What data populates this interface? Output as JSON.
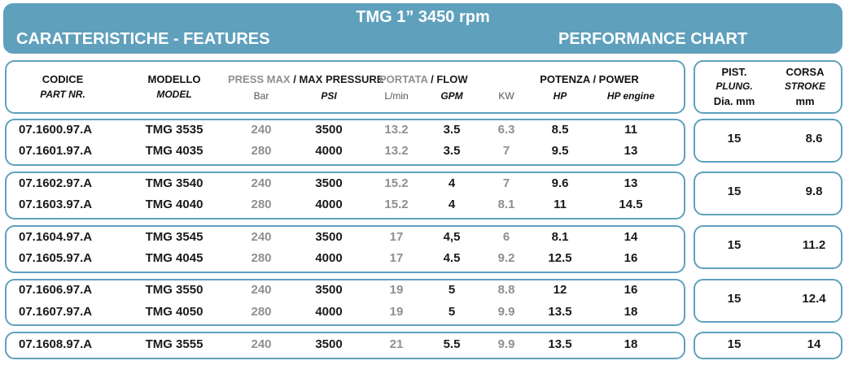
{
  "banner": {
    "title": "TMG 1” 3450 rpm",
    "left": "CARATTERISTICHE - FEATURES",
    "right": "PERFORMANCE CHART"
  },
  "headers": {
    "code_it": "CODICE",
    "code_en": "PART NR.",
    "model_it": "MODELLO",
    "model_en": "MODEL",
    "press_it": "PRESS MAX",
    "sep": "/",
    "press_en": "MAX PRESSURE",
    "unit_bar": "Bar",
    "unit_psi": "PSI",
    "flow_it": "PORTATA",
    "flow_en": "FLOW",
    "unit_lmin": "L/min",
    "unit_gpm": "GPM",
    "power_it_en": "POTENZA / POWER",
    "unit_kw": "KW",
    "unit_hp": "HP",
    "unit_hp_engine": "HP engine",
    "plunger_it": "PIST.",
    "plunger_en": "PLUNG.",
    "plunger_unit": "Dia. mm",
    "stroke_it": "CORSA",
    "stroke_en": "STROKE",
    "stroke_unit": "mm"
  },
  "groups": [
    {
      "plunger": "15",
      "stroke": "8.6",
      "rows": [
        {
          "code": "07.1600.97.A",
          "model": "TMG 3535",
          "bar": "240",
          "psi": "3500",
          "lmin": "13.2",
          "gpm": "3.5",
          "kw": "6.3",
          "hp": "8.5",
          "hp_engine": "11"
        },
        {
          "code": "07.1601.97.A",
          "model": "TMG 4035",
          "bar": "280",
          "psi": "4000",
          "lmin": "13.2",
          "gpm": "3.5",
          "kw": "7",
          "hp": "9.5",
          "hp_engine": "13"
        }
      ]
    },
    {
      "plunger": "15",
      "stroke": "9.8",
      "rows": [
        {
          "code": "07.1602.97.A",
          "model": "TMG 3540",
          "bar": "240",
          "psi": "3500",
          "lmin": "15.2",
          "gpm": "4",
          "kw": "7",
          "hp": "9.6",
          "hp_engine": "13"
        },
        {
          "code": "07.1603.97.A",
          "model": "TMG 4040",
          "bar": "280",
          "psi": "4000",
          "lmin": "15.2",
          "gpm": "4",
          "kw": "8.1",
          "hp": "11",
          "hp_engine": "14.5"
        }
      ]
    },
    {
      "plunger": "15",
      "stroke": "11.2",
      "rows": [
        {
          "code": "07.1604.97.A",
          "model": "TMG 3545",
          "bar": "240",
          "psi": "3500",
          "lmin": "17",
          "gpm": "4,5",
          "kw": "6",
          "hp": "8.1",
          "hp_engine": "14"
        },
        {
          "code": "07.1605.97.A",
          "model": "TMG 4045",
          "bar": "280",
          "psi": "4000",
          "lmin": "17",
          "gpm": "4.5",
          "kw": "9.2",
          "hp": "12.5",
          "hp_engine": "16"
        }
      ]
    },
    {
      "plunger": "15",
      "stroke": "12.4",
      "rows": [
        {
          "code": "07.1606.97.A",
          "model": "TMG 3550",
          "bar": "240",
          "psi": "3500",
          "lmin": "19",
          "gpm": "5",
          "kw": "8.8",
          "hp": "12",
          "hp_engine": "16"
        },
        {
          "code": "07.1607.97.A",
          "model": "TMG 4050",
          "bar": "280",
          "psi": "4000",
          "lmin": "19",
          "gpm": "5",
          "kw": "9.9",
          "hp": "13.5",
          "hp_engine": "18"
        }
      ]
    },
    {
      "plunger": "15",
      "stroke": "14",
      "rows": [
        {
          "code": "07.1608.97.A",
          "model": "TMG 3555",
          "bar": "240",
          "psi": "3500",
          "lmin": "21",
          "gpm": "5.5",
          "kw": "9.9",
          "hp": "13.5",
          "hp_engine": "18"
        }
      ]
    }
  ]
}
